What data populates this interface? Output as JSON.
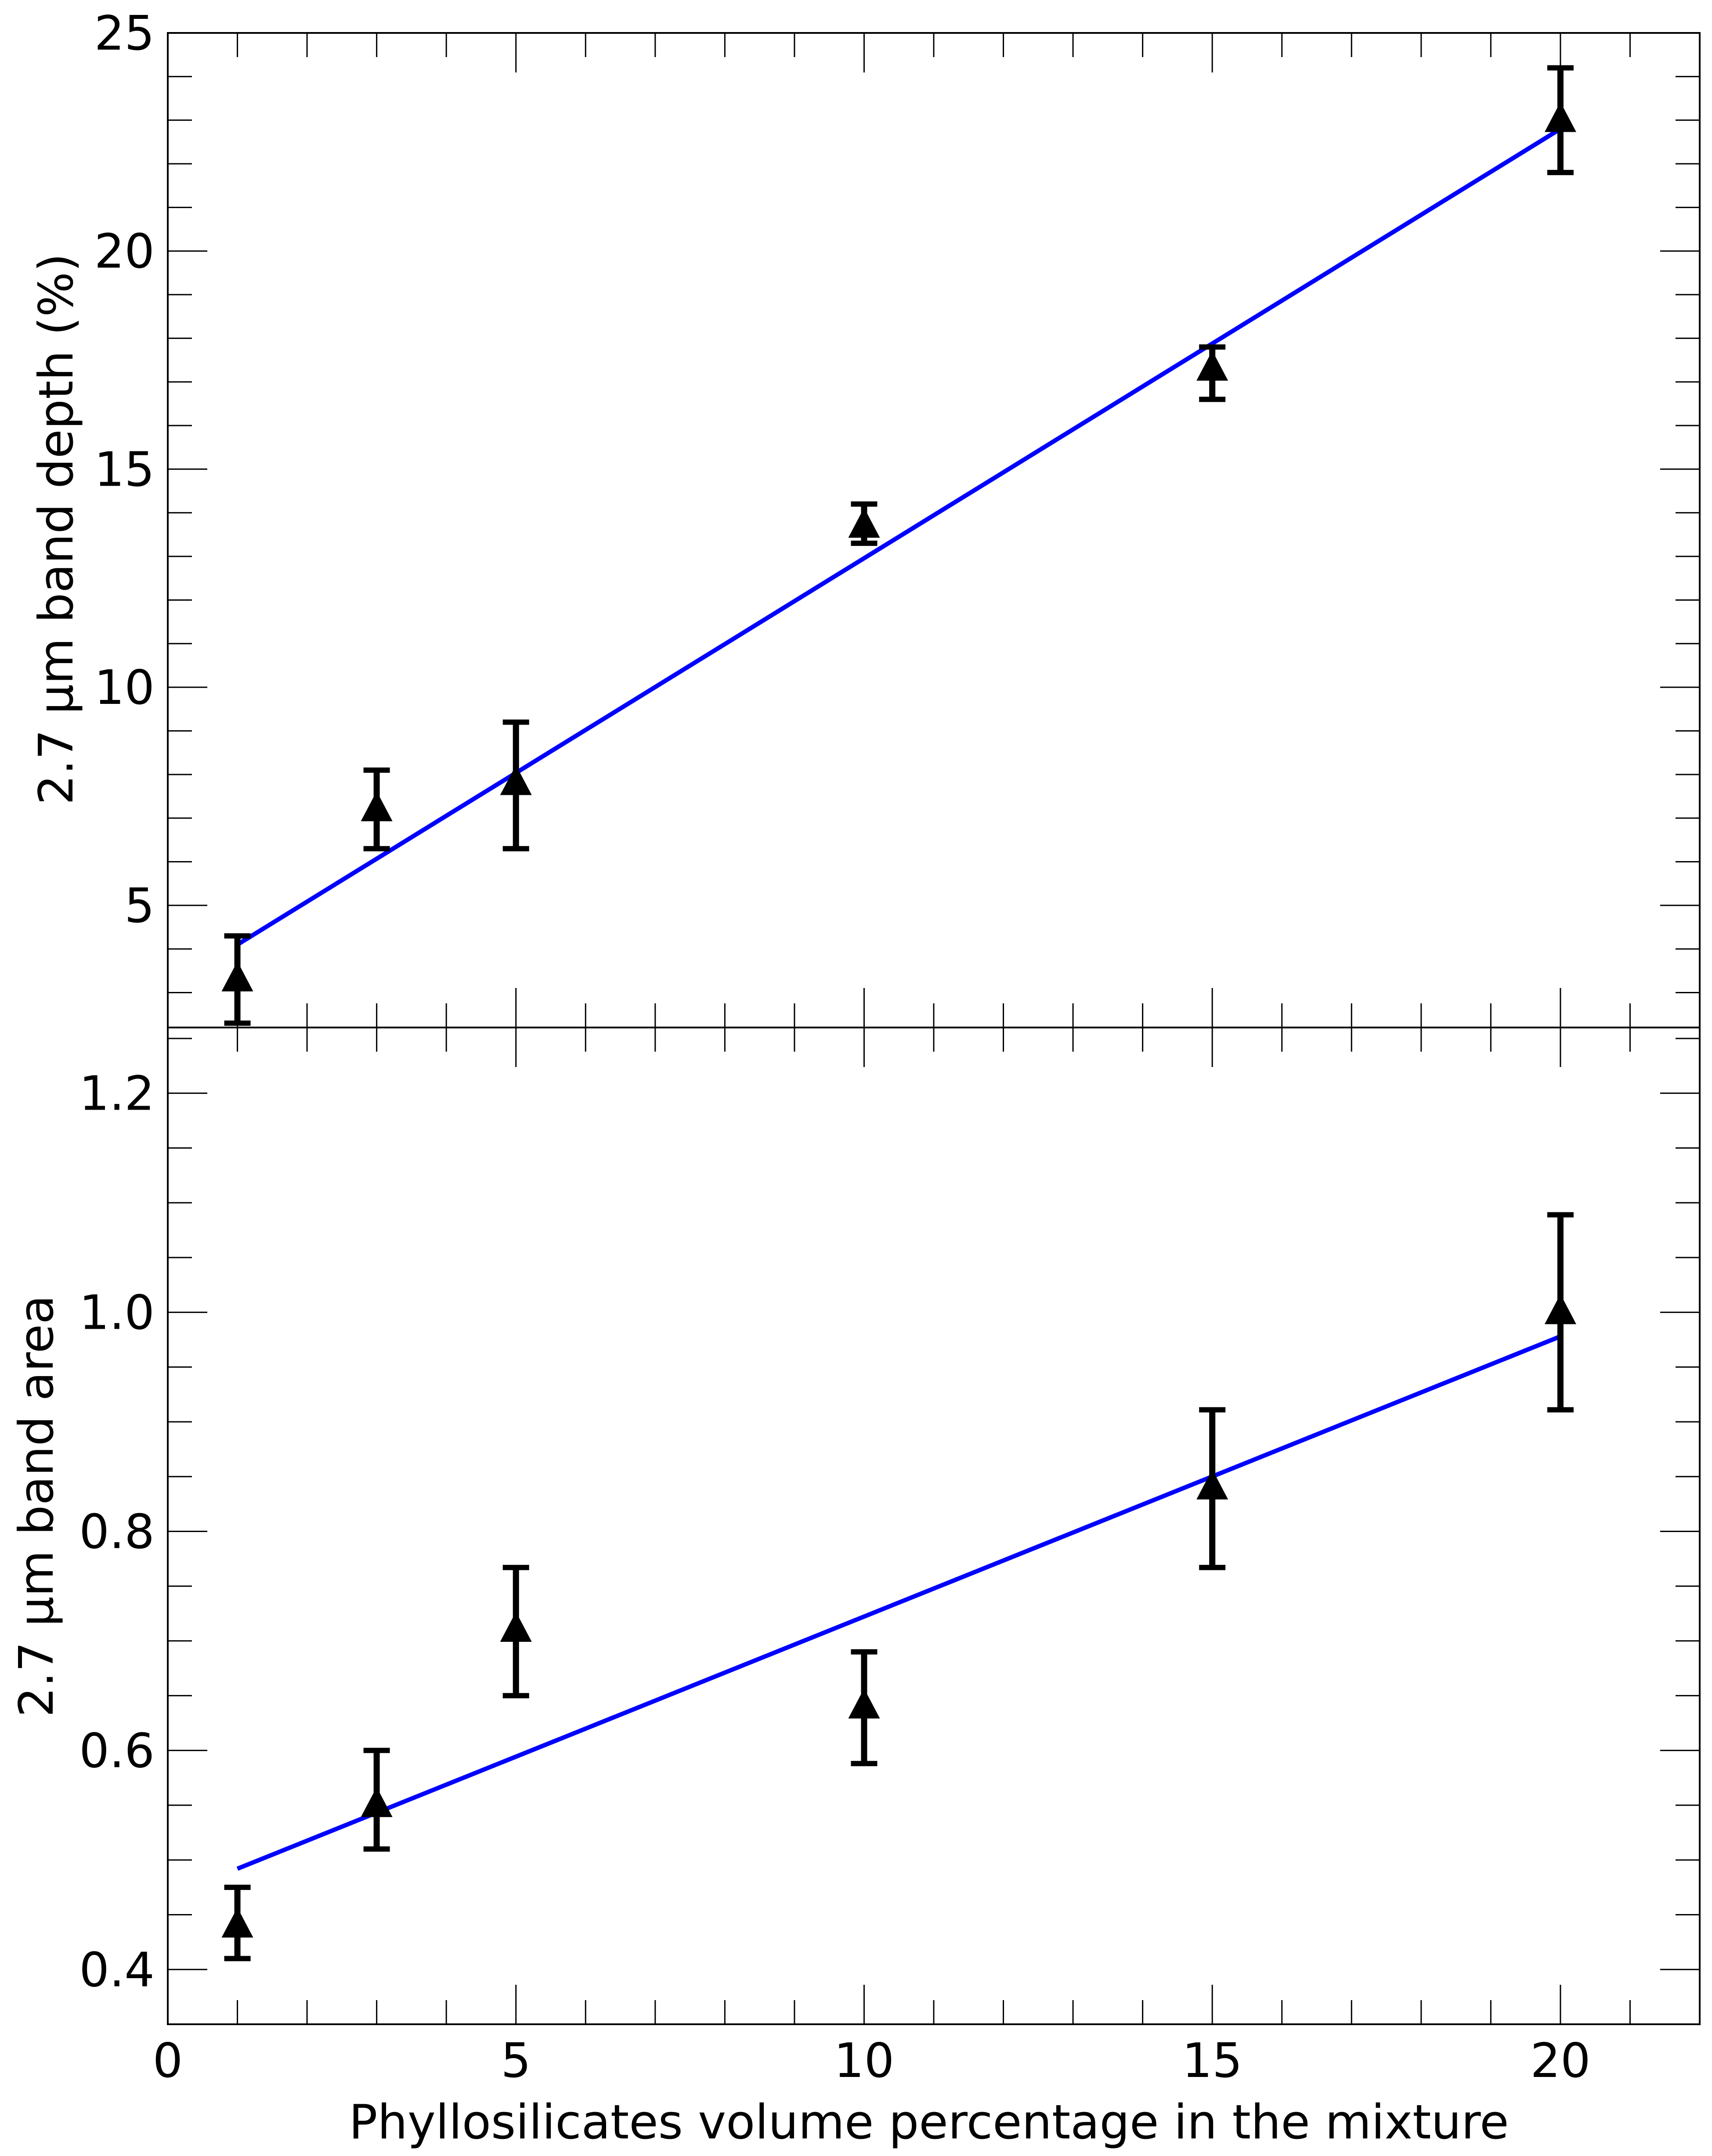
{
  "chart_data": [
    {
      "type": "scatter",
      "panel": "top",
      "ylabel": "2.7 µm band depth (%)",
      "xlim": [
        0,
        22
      ],
      "ylim": [
        2.2,
        25
      ],
      "x_ticks": [
        0,
        5,
        10,
        15,
        20
      ],
      "y_ticks": [
        5,
        10,
        15,
        20,
        25
      ],
      "y_tick_labels": [
        "5",
        "10",
        "15",
        "20",
        "25"
      ],
      "marker": "triangle",
      "points": [
        {
          "x": 1,
          "y": 3.3,
          "err_low": 2.3,
          "err_high": 4.3
        },
        {
          "x": 3,
          "y": 7.2,
          "err_low": 6.3,
          "err_high": 8.1
        },
        {
          "x": 5,
          "y": 7.8,
          "err_low": 6.3,
          "err_high": 9.2
        },
        {
          "x": 10,
          "y": 13.7,
          "err_low": 13.3,
          "err_high": 14.2
        },
        {
          "x": 15,
          "y": 17.3,
          "err_low": 16.6,
          "err_high": 17.8
        },
        {
          "x": 20,
          "y": 23.0,
          "err_low": 21.8,
          "err_high": 24.2
        }
      ],
      "fit_line": {
        "x": [
          1,
          20
        ],
        "y": [
          4.1,
          22.8
        ],
        "color": "#0000ff"
      }
    },
    {
      "type": "scatter",
      "panel": "bottom",
      "ylabel": "2.7 µm band area",
      "xlabel": "Phyllosilicates volume percentage in the mixture",
      "xlim": [
        0,
        22
      ],
      "ylim": [
        0.35,
        1.26
      ],
      "x_ticks": [
        0,
        5,
        10,
        15,
        20
      ],
      "x_tick_labels": [
        "0",
        "5",
        "10",
        "15",
        "20"
      ],
      "y_ticks": [
        0.4,
        0.6,
        0.8,
        1.0,
        1.2
      ],
      "y_tick_labels": [
        "0.4",
        "0.6",
        "0.8",
        "1.0",
        "1.2"
      ],
      "marker": "triangle",
      "points": [
        {
          "x": 1,
          "y": 0.44,
          "err_low": 0.41,
          "err_high": 0.475
        },
        {
          "x": 3,
          "y": 0.55,
          "err_low": 0.51,
          "err_high": 0.6
        },
        {
          "x": 5,
          "y": 0.71,
          "err_low": 0.65,
          "err_high": 0.767
        },
        {
          "x": 10,
          "y": 0.64,
          "err_low": 0.588,
          "err_high": 0.69
        },
        {
          "x": 15,
          "y": 0.84,
          "err_low": 0.767,
          "err_high": 0.911
        },
        {
          "x": 20,
          "y": 1.0,
          "err_low": 0.911,
          "err_high": 1.089
        }
      ],
      "fit_line": {
        "x": [
          1,
          20
        ],
        "y": [
          0.492,
          0.978
        ],
        "color": "#0000ff"
      }
    }
  ]
}
